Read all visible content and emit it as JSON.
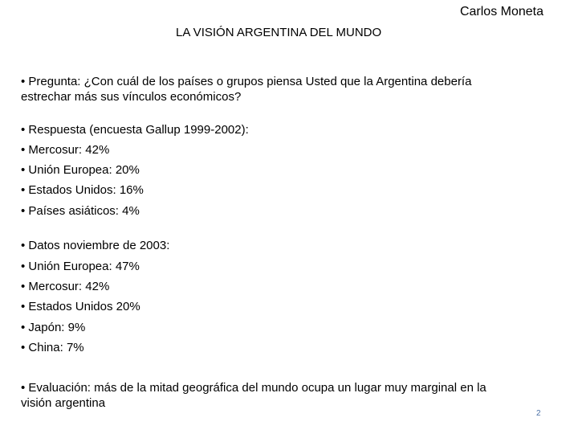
{
  "header": {
    "author": "Carlos Moneta",
    "title": "LA VISIÓN ARGENTINA DEL MUNDO"
  },
  "question": {
    "line1": "• Pregunta: ¿Con cuál de los países o grupos piensa Usted que la Argentina debería",
    "line2": "estrechar más sus vínculos económicos?"
  },
  "survey": {
    "heading": "• Respuesta (encuesta Gallup 1999-2002):",
    "items": [
      "• Mercosur: 42%",
      "• Unión Europea: 20%",
      "• Estados Unidos: 16%",
      "• Países asiáticos: 4%"
    ]
  },
  "data2003": {
    "heading": "• Datos noviembre de 2003:",
    "items": [
      "• Unión Europea: 47%",
      "• Mercosur: 42%",
      "• Estados Unidos 20%",
      "• Japón: 9%",
      "• China: 7%"
    ]
  },
  "evaluation": {
    "line1": "• Evaluación: más de la mitad geográfica del mundo ocupa un lugar muy marginal en la",
    "line2": "visión argentina"
  },
  "page_number": "2"
}
